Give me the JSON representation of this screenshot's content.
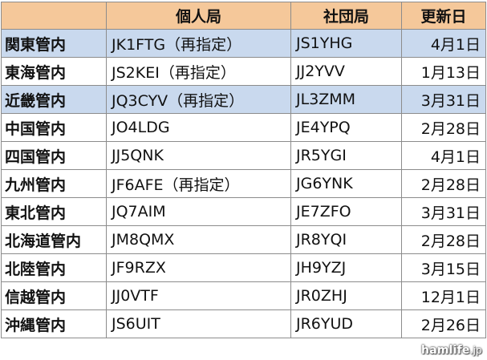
{
  "header": {
    "col_region": "",
    "col_personal": "個人局",
    "col_club": "社団局",
    "col_date": "更新日"
  },
  "rows": [
    {
      "region": "関東管内",
      "personal": "JK1FTG（再指定）",
      "club": "JS1YHG",
      "date": "4月1日",
      "highlight": true
    },
    {
      "region": "東海管内",
      "personal": "JS2KEI（再指定）",
      "club": "JJ2YVV",
      "date": "1月13日",
      "highlight": false
    },
    {
      "region": "近畿管内",
      "personal": "JQ3CYV（再指定）",
      "club": "JL3ZMM",
      "date": "3月31日",
      "highlight": true
    },
    {
      "region": "中国管内",
      "personal": "JO4LDG",
      "club": "JE4YPQ",
      "date": "2月28日",
      "highlight": false
    },
    {
      "region": "四国管内",
      "personal": "JJ5QNK",
      "club": "JR5YGI",
      "date": "4月1日",
      "highlight": false
    },
    {
      "region": "九州管内",
      "personal": "JF6AFE（再指定）",
      "club": "JG6YNK",
      "date": "2月28日",
      "highlight": false
    },
    {
      "region": "東北管内",
      "personal": "JQ7AIM",
      "club": "JE7ZFO",
      "date": "3月31日",
      "highlight": false
    },
    {
      "region": "北海道管内",
      "personal": "JM8QMX",
      "club": "JR8YQI",
      "date": "2月28日",
      "highlight": false
    },
    {
      "region": "北陸管内",
      "personal": "JF9RZX",
      "club": "JH9YZJ",
      "date": "3月15日",
      "highlight": false
    },
    {
      "region": "信越管内",
      "personal": "JJ0VTF",
      "club": "JR0ZHJ",
      "date": "12月1日",
      "highlight": false
    },
    {
      "region": "沖縄管内",
      "personal": "JS6UIT",
      "club": "JR6YUD",
      "date": "2月26日",
      "highlight": false
    }
  ],
  "watermark": {
    "brand": "hamlife",
    "suffix": ".jp"
  },
  "colors": {
    "header_bg": "#f5c89a",
    "highlight_bg": "#c9d9ee",
    "border": "#8c8c8c"
  }
}
